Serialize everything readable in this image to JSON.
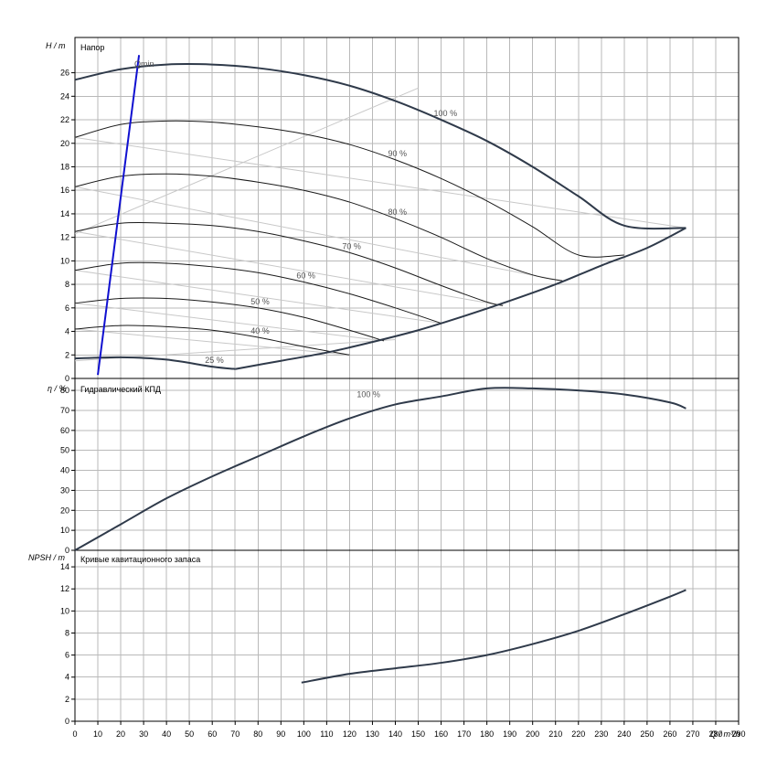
{
  "chart_data": [
    {
      "type": "line",
      "title": "Напор",
      "ylabel": "H / m",
      "xlim": [
        0,
        290
      ],
      "ylim": [
        0,
        29
      ],
      "y_ticks": [
        0,
        2,
        4,
        6,
        8,
        10,
        12,
        14,
        16,
        18,
        20,
        22,
        24,
        26
      ],
      "series": [
        {
          "name": "100 %",
          "x": [
            0,
            20,
            40,
            60,
            80,
            100,
            120,
            140,
            160,
            180,
            200,
            220,
            240,
            267
          ],
          "y": [
            25.4,
            26.3,
            26.7,
            26.7,
            26.4,
            25.8,
            24.9,
            23.6,
            22.0,
            20.2,
            18.0,
            15.5,
            13.0,
            12.8
          ]
        },
        {
          "name": "90 %",
          "x": [
            0,
            20,
            40,
            60,
            80,
            100,
            120,
            140,
            160,
            180,
            200,
            220,
            240
          ],
          "y": [
            20.5,
            21.6,
            21.9,
            21.8,
            21.4,
            20.8,
            19.9,
            18.6,
            17.0,
            15.1,
            12.9,
            10.5,
            10.5
          ]
        },
        {
          "name": "80 %",
          "x": [
            0,
            20,
            40,
            60,
            80,
            100,
            120,
            140,
            160,
            180,
            200,
            213
          ],
          "y": [
            16.3,
            17.2,
            17.4,
            17.2,
            16.7,
            16.0,
            15.0,
            13.6,
            12.0,
            10.2,
            8.8,
            8.3
          ]
        },
        {
          "name": "70 %",
          "x": [
            0,
            20,
            40,
            60,
            80,
            100,
            120,
            140,
            160,
            180,
            187
          ],
          "y": [
            12.5,
            13.2,
            13.2,
            13.0,
            12.5,
            11.7,
            10.7,
            9.4,
            7.9,
            6.5,
            6.2
          ]
        },
        {
          "name": "60 %",
          "x": [
            0,
            20,
            40,
            60,
            80,
            100,
            120,
            140,
            160
          ],
          "y": [
            9.2,
            9.8,
            9.8,
            9.5,
            9.0,
            8.2,
            7.2,
            6.0,
            4.7
          ]
        },
        {
          "name": "50 %",
          "x": [
            0,
            20,
            40,
            60,
            80,
            100,
            120,
            135
          ],
          "y": [
            6.4,
            6.8,
            6.8,
            6.5,
            6.0,
            5.2,
            4.1,
            3.2
          ]
        },
        {
          "name": "40 %",
          "x": [
            0,
            20,
            40,
            60,
            80,
            100,
            120
          ],
          "y": [
            4.2,
            4.5,
            4.4,
            4.1,
            3.5,
            2.7,
            2.0
          ]
        },
        {
          "name": "25 %",
          "x": [
            0,
            20,
            40,
            60,
            70
          ],
          "y": [
            1.7,
            1.8,
            1.6,
            1.0,
            0.8
          ]
        }
      ],
      "max_curve": {
        "x": [
          70,
          90,
          110,
          130,
          150,
          170,
          190,
          210,
          230,
          250,
          267
        ],
        "y": [
          0.8,
          1.5,
          2.2,
          3.1,
          4.1,
          5.3,
          6.6,
          8.0,
          9.6,
          11.1,
          12.8
        ]
      },
      "qmin": {
        "label": "Qmin",
        "x": [
          10,
          28
        ],
        "y": [
          0.3,
          27.5
        ]
      }
    },
    {
      "type": "line",
      "title": "Гидравлический КПД",
      "ylabel": "η / %",
      "xlim": [
        0,
        290
      ],
      "ylim": [
        0,
        86
      ],
      "y_ticks": [
        0,
        10,
        20,
        30,
        40,
        50,
        60,
        70,
        80
      ],
      "series": [
        {
          "name": "100 %",
          "x": [
            0,
            20,
            40,
            60,
            80,
            100,
            120,
            140,
            160,
            180,
            200,
            220,
            240,
            260,
            267
          ],
          "y": [
            0,
            13,
            26,
            37,
            47,
            57,
            66,
            73,
            77,
            81,
            81,
            80,
            78,
            74,
            71
          ]
        }
      ]
    },
    {
      "type": "line",
      "title": "Кривые кавитационного запаса",
      "ylabel": "NPSH / m",
      "xlabel": "Q / m³/h",
      "xlim": [
        0,
        290
      ],
      "ylim": [
        0,
        15.5
      ],
      "x_ticks": [
        0,
        10,
        20,
        30,
        40,
        50,
        60,
        70,
        80,
        90,
        100,
        110,
        120,
        130,
        140,
        150,
        160,
        170,
        180,
        190,
        200,
        210,
        220,
        230,
        240,
        250,
        260,
        270,
        280,
        290
      ],
      "y_ticks": [
        0,
        2,
        4,
        6,
        8,
        10,
        12,
        14
      ],
      "series": [
        {
          "name": "",
          "x": [
            99,
            120,
            140,
            160,
            180,
            200,
            220,
            240,
            260,
            267
          ],
          "y": [
            3.5,
            4.3,
            4.8,
            5.3,
            6.0,
            7.0,
            8.2,
            9.7,
            11.3,
            11.9
          ]
        }
      ]
    }
  ]
}
